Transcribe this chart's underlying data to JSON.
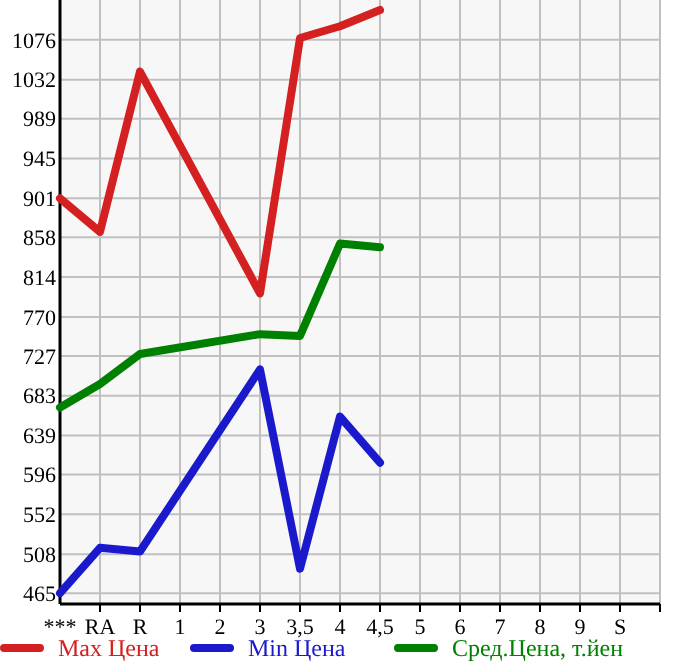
{
  "chart_data": {
    "type": "line",
    "categories": [
      "***",
      "RA",
      "R",
      "1",
      "2",
      "3",
      "3,5",
      "4",
      "4,5",
      "5",
      "6",
      "7",
      "8",
      "9",
      "S"
    ],
    "ylim": [
      453,
      1120
    ],
    "yticks": [
      465,
      508,
      552,
      596,
      639,
      683,
      727,
      770,
      814,
      858,
      901,
      945,
      989,
      1032,
      1076
    ],
    "grid": true,
    "legend": "bottom",
    "marker": "none",
    "series": [
      {
        "name": "Max Цена",
        "color": "#d42020",
        "values": [
          901,
          864,
          1041,
          null,
          null,
          796,
          1078,
          1091,
          1109,
          null,
          null,
          null,
          null,
          null,
          null
        ]
      },
      {
        "name": "Min Цена",
        "color": "#1a1acc",
        "values": [
          465,
          515,
          511,
          null,
          null,
          712,
          492,
          660,
          609,
          null,
          null,
          null,
          null,
          null,
          null
        ]
      },
      {
        "name": "Сред.Цена, т.йен",
        "color": "#008000",
        "values": [
          670,
          696,
          729,
          null,
          null,
          751,
          749,
          851,
          847,
          null,
          null,
          null,
          null,
          null,
          null
        ]
      }
    ]
  }
}
